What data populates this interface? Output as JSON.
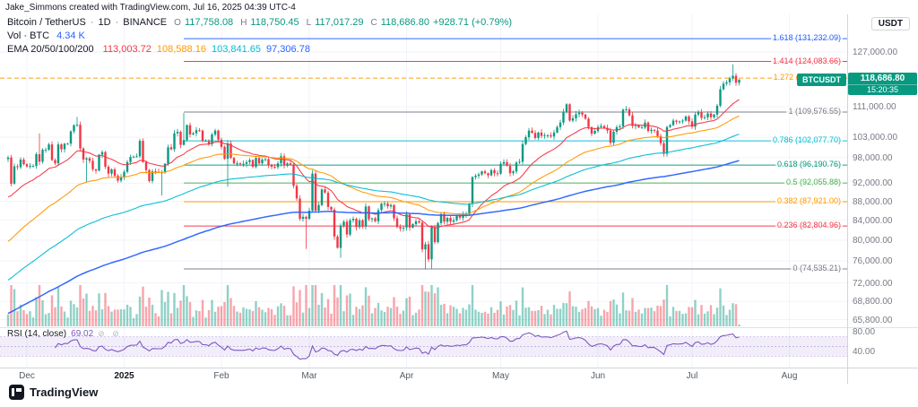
{
  "attribution": "Jake_Simmons created with TradingView.com, Jul 16, 2025 04:39 UTC-4",
  "legend": {
    "symbol_title": "Bitcoin / TetherUS",
    "sep": "·",
    "interval": "1D",
    "exchange": "BINANCE",
    "k_o": "O",
    "k_h": "H",
    "k_l": "L",
    "k_c": "C",
    "o": "117,758.08",
    "h": "118,750.45",
    "l": "117,017.29",
    "c": "118,686.80",
    "change": "+928.71 (+0.79%)",
    "vol_label": "Vol · BTC",
    "vol_value": "4.34 K",
    "ema_label": "EMA 20/50/100/200"
  },
  "rsi_legend": {
    "label": "RSI (14, close)",
    "value": "69.02",
    "icons": "⊘ ⊘"
  },
  "badge": {
    "symbol": "BTCUSDT",
    "price": "118,686.80",
    "countdown": "15:20:35",
    "price_value": 118686.8,
    "color": "#089981"
  },
  "price_scale": {
    "currency": "USDT",
    "labels": [
      {
        "text": "127,000.00",
        "price": 127000
      },
      {
        "text": "111,000.00",
        "price": 111000
      },
      {
        "text": "103,000.00",
        "price": 103000
      },
      {
        "text": "98,000.00",
        "price": 98000
      },
      {
        "text": "92,000.00",
        "price": 92000
      },
      {
        "text": "88,000.00",
        "price": 88000
      },
      {
        "text": "84,000.00",
        "price": 84000
      },
      {
        "text": "80,000.00",
        "price": 80000
      },
      {
        "text": "76,000.00",
        "price": 76000
      },
      {
        "text": "72,000.00",
        "price": 72000
      },
      {
        "text": "68,800.00",
        "price": 68800
      },
      {
        "text": "65,800.00",
        "price": 65800
      }
    ],
    "rsi_labels": [
      {
        "text": "80.00",
        "value": 80
      },
      {
        "text": "40.00",
        "value": 40
      }
    ]
  },
  "fib": {
    "start_x": 205,
    "levels": [
      {
        "text": "1.618 (131,232.09)",
        "price": 131232.09,
        "color": "#2962FF"
      },
      {
        "text": "1.414 (124,083.66)",
        "price": 124083.66,
        "color": "#F23645"
      },
      {
        "text": "1.272 (119,107.79)",
        "price": 119107.79,
        "color": "#FF9800",
        "dashed": true,
        "full": true
      },
      {
        "text": "1 (109,576.55)",
        "price": 109576.55,
        "color": "#787B86"
      },
      {
        "text": "0.786 (102,077.70)",
        "price": 102077.7,
        "color": "#00BCD4"
      },
      {
        "text": "0.618 (96,190.76)",
        "price": 96190.76,
        "color": "#089981"
      },
      {
        "text": "0.5 (92,055.88)",
        "price": 92055.88,
        "color": "#4CAF50"
      },
      {
        "text": "0.382 (87,921.00)",
        "price": 87921.0,
        "color": "#FF9800"
      },
      {
        "text": "0.236 (82,804.96)",
        "price": 82804.96,
        "color": "#F23645"
      },
      {
        "text": "0 (74,535.21)",
        "price": 74535.21,
        "color": "#787B86"
      }
    ]
  },
  "time_axis": [
    {
      "label": "Dec",
      "day": 0
    },
    {
      "label": "2025",
      "day": 31,
      "strong": true
    },
    {
      "label": "Feb",
      "day": 62
    },
    {
      "label": "Mar",
      "day": 90
    },
    {
      "label": "Apr",
      "day": 121
    },
    {
      "label": "May",
      "day": 151
    },
    {
      "label": "Jun",
      "day": 182
    },
    {
      "label": "Jul",
      "day": 212
    },
    {
      "label": "Aug",
      "day": 243
    }
  ],
  "logo": {
    "wordmark": "TradingView"
  },
  "chart_data": {
    "type": "candlestick",
    "symbol": "BTCUSDT",
    "interval": "1D",
    "price_scale_mode": "log",
    "x_start": "2024-11-25",
    "x_end": "2025-07-16",
    "up_color": "#089981",
    "down_color": "#F23645",
    "vol_up": "rgba(8,153,129,0.45)",
    "vol_down": "rgba(242,54,69,0.45)",
    "series": {
      "pre_dec": [
        98000,
        91900,
        95900,
        95700,
        97500,
        96400
      ],
      "dec": [
        95900,
        96000,
        96000,
        98800,
        97000,
        99900,
        99900,
        101200,
        97400,
        96600,
        101200,
        100000,
        101400,
        101400,
        104500,
        106100,
        106200,
        100200,
        97500,
        97800,
        97200,
        95200,
        94900,
        98700,
        99300,
        95800,
        94200,
        95200,
        93700,
        92600,
        93400
      ],
      "jan": [
        94600,
        96900,
        98100,
        98200,
        98300,
        102100,
        96900,
        95000,
        92500,
        94700,
        94600,
        94500,
        94500,
        96500,
        100500,
        100000,
        104000,
        104400,
        101100,
        102300,
        106100,
        103700,
        104000,
        104800,
        104700,
        102100,
        102100,
        101300,
        103700,
        104700,
        102400
      ],
      "feb": [
        100600,
        97700,
        101400,
        97900,
        96600,
        96600,
        96500,
        96500,
        96900,
        97400,
        95800,
        97900,
        96600,
        97500,
        97600,
        96200,
        95800,
        95700,
        96600,
        98300,
        96100,
        96600,
        96300,
        91400,
        88600,
        84300,
        84700,
        84300
      ],
      "mar": [
        86000,
        94200,
        86000,
        87200,
        90600,
        89900,
        86800,
        86200,
        80700,
        78500,
        82900,
        83700,
        81100,
        84000,
        84300,
        82600,
        84000,
        82700,
        86900,
        84200,
        84400,
        83800,
        86100,
        87500,
        87500,
        86900,
        87200,
        84400,
        82600,
        82300,
        82500
      ],
      "apr": [
        85200,
        82500,
        83200,
        83800,
        83500,
        78200,
        79200,
        76300,
        82600,
        79600,
        83400,
        85300,
        83700,
        84500,
        83700,
        84000,
        84900,
        84500,
        85200,
        85200,
        87500,
        93400,
        93700,
        94000,
        94700,
        94300,
        93800,
        95000,
        94300,
        94200
      ],
      "may": [
        96500,
        96900,
        96000,
        94300,
        94700,
        96800,
        97000,
        101300,
        103000,
        104700,
        104100,
        102800,
        104200,
        103300,
        103500,
        103500,
        103200,
        104200,
        105600,
        106800,
        109700,
        111700,
        107300,
        107900,
        109000,
        109400,
        108900,
        107800,
        105600,
        103900,
        104600
      ],
      "jun": [
        105600,
        105900,
        105400,
        104700,
        101600,
        104400,
        105600,
        105800,
        110200,
        110300,
        108700,
        105900,
        106100,
        105500,
        105500,
        106800,
        104600,
        104900,
        104700,
        103300,
        101500,
        98900,
        105600,
        106100,
        107300,
        107000,
        107100,
        107300,
        108400,
        107100
      ],
      "jul": [
        105700,
        108900,
        109600,
        108000,
        108200,
        109200,
        108200,
        108900,
        111300,
        115900,
        117500,
        117900,
        119100,
        119800,
        117758,
        118686.8
      ]
    },
    "extremes": [
      [
        10,
        "h",
        104000
      ],
      [
        22,
        "h",
        108268
      ],
      [
        25,
        "l",
        92200
      ],
      [
        49,
        "l",
        89257
      ],
      [
        56,
        "h",
        109358
      ],
      [
        70,
        "l",
        91200
      ],
      [
        95,
        "l",
        78300
      ],
      [
        97,
        "h",
        95000
      ],
      [
        106,
        "l",
        76600
      ],
      [
        133,
        "l",
        74436
      ],
      [
        135,
        "l",
        74600
      ],
      [
        178,
        "h",
        111980
      ],
      [
        209,
        "l",
        98200
      ],
      [
        231,
        "h",
        123236
      ]
    ],
    "last_candle": {
      "o": 117758.08,
      "h": 118750.45,
      "l": 117017.29,
      "c": 118686.8
    },
    "ema": [
      {
        "period": 20,
        "value": "113,003.72",
        "seed": 88000,
        "color": "#F23645"
      },
      {
        "period": 50,
        "value": "108,588.16",
        "seed": 79000,
        "color": "#FF9800"
      },
      {
        "period": 100,
        "value": "103,841.65",
        "seed": 72000,
        "color": "#00BCD4"
      },
      {
        "period": 200,
        "value": "97,306.78",
        "seed": 66500,
        "color": "#2962FF"
      }
    ],
    "rsi": {
      "period": 14,
      "current": 69.02,
      "color": "#7E57C2",
      "bands": [
        30,
        50,
        70
      ],
      "scale_labels": [
        80,
        40
      ]
    },
    "volume_last_btc_k": 4.34
  }
}
